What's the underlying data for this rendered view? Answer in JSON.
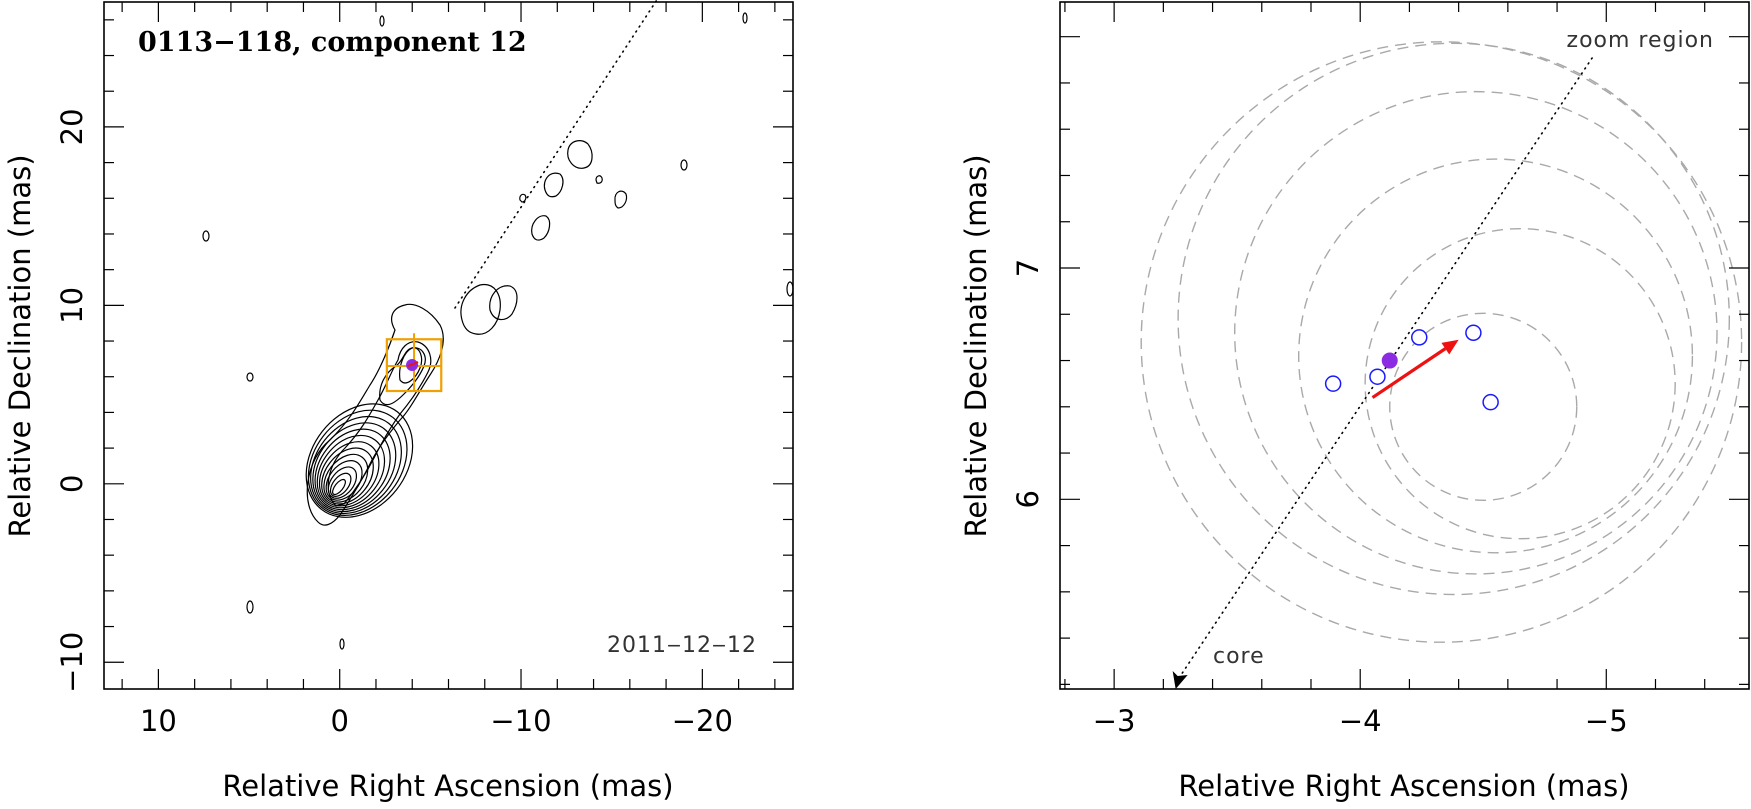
{
  "chart_data": [
    {
      "type": "contour",
      "title": "0113−118, component 12",
      "epoch_label": "2011‒12‒12",
      "xlabel": "Relative Right Ascension (mas)",
      "ylabel": "Relative Declination (mas)",
      "xlim": [
        13,
        -25
      ],
      "ylim": [
        -11.5,
        27
      ],
      "x_ticks": [
        "10",
        "0",
        "−10",
        "−20"
      ],
      "y_ticks": [
        "−10",
        "0",
        "10",
        "20"
      ],
      "x_tick_values": [
        10,
        0,
        -10,
        -20
      ],
      "y_tick_values": [
        -10,
        0,
        10,
        20
      ],
      "ridge_line": {
        "x": [
          0,
          -20
        ],
        "y": [
          0,
          31
        ]
      },
      "zoom_box": {
        "x": [
          -2.6,
          -5.6
        ],
        "y": [
          5.2,
          8.1
        ]
      },
      "component": {
        "x": -4.1,
        "y": 6.6,
        "color": "#8b2be2"
      }
    },
    {
      "type": "scatter",
      "annotation": "zoom region",
      "core_label": "core",
      "xlabel": "Relative Right Ascension (mas)",
      "ylabel": "Relative Declination (mas)",
      "xlim": [
        -2.78,
        -5.58
      ],
      "ylim": [
        5.18,
        8.15
      ],
      "x_ticks": [
        "−3",
        "−4",
        "−5"
      ],
      "y_ticks": [
        "6",
        "7"
      ],
      "x_tick_values": [
        -3,
        -4,
        -5
      ],
      "y_tick_values": [
        6,
        7
      ],
      "epoch_points": {
        "color": "#1a1aff",
        "points": [
          {
            "x": -3.89,
            "y": 6.5
          },
          {
            "x": -4.07,
            "y": 6.53
          },
          {
            "x": -4.24,
            "y": 6.7
          },
          {
            "x": -4.46,
            "y": 6.72
          },
          {
            "x": -4.53,
            "y": 6.42
          }
        ]
      },
      "mean_position": {
        "x": -4.12,
        "y": 6.6,
        "color": "#8b2be2"
      },
      "motion_vector": {
        "x0": -4.05,
        "y0": 6.44,
        "x1": -4.4,
        "y1": 6.69,
        "color": "#ee1111"
      },
      "ridge_line": {
        "x": [
          -3.25,
          -4.95
        ],
        "y": [
          5.18,
          7.92
        ]
      },
      "error_circles": [
        {
          "x": -4.65,
          "y": 6.5,
          "r": 0.63
        },
        {
          "x": -4.55,
          "y": 6.62,
          "r": 0.8
        },
        {
          "x": -4.47,
          "y": 6.72,
          "r": 0.98
        },
        {
          "x": -4.38,
          "y": 6.78,
          "r": 1.12
        },
        {
          "x": -4.33,
          "y": 6.68,
          "r": 1.22
        },
        {
          "x": -4.5,
          "y": 6.4,
          "r": 0.38
        }
      ]
    }
  ]
}
